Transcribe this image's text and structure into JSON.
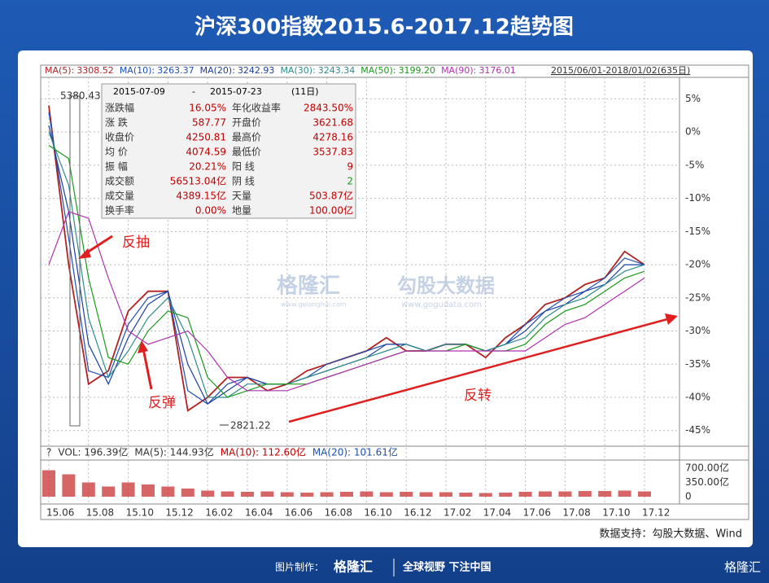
{
  "header": {
    "title": "沪深300指数2015.6-2017.12趋势图"
  },
  "toolbar": {
    "range": "2015/06/01-2018/01/02(635日)",
    "values": [
      "3308.52",
      "3263.37",
      "3242.93",
      "3243.34",
      "3199.20",
      "3176.01"
    ]
  },
  "info_box": {
    "start": "2015-07-09",
    "sep": "-",
    "end": "2015-07-23",
    "days": "(11日)",
    "rows": [
      [
        "涨跌幅",
        "16.05%",
        "年化收益率",
        "2843.50%"
      ],
      [
        "涨 跌",
        "587.77",
        "开盘价",
        "3621.68"
      ],
      [
        "收盘价",
        "4250.81",
        "最高价",
        "4278.16"
      ],
      [
        "均 价",
        "4074.59",
        "最低价",
        "3537.83"
      ],
      [
        "振 幅",
        "20.21%",
        "阳 线",
        "9"
      ],
      [
        "成交额",
        "56513.04亿",
        "阴 线",
        "2"
      ],
      [
        "成交量",
        "4389.15亿",
        "天量",
        "503.87亿"
      ],
      [
        "换手率",
        "0.00%",
        "地量",
        "100.00亿"
      ]
    ]
  },
  "annotations": {
    "high": "5380.43",
    "low": "2821.22",
    "a1": "反抽",
    "a2": "反弹",
    "a3": "反转"
  },
  "watermark": {
    "logo": "格隆汇",
    "site1": "www.gelonghui.com",
    "brand": "勾股大数据",
    "site2": "www.gogudata.com"
  },
  "chart_data": {
    "type": "line",
    "categories": [
      "15.06",
      null,
      "15.08",
      null,
      "15.10",
      null,
      "15.12",
      null,
      "16.02",
      null,
      "16.04",
      null,
      "16.06",
      null,
      "16.08",
      null,
      "16.10",
      null,
      "16.12",
      null,
      "17.02",
      null,
      "17.04",
      null,
      "17.06",
      null,
      "17.08",
      null,
      "17.10",
      null,
      "17.12"
    ],
    "ylim": [
      -47,
      8
    ],
    "yticks": [
      {
        "value": 5,
        "label": "5%"
      },
      {
        "value": 0,
        "label": "0%"
      },
      {
        "value": -5,
        "label": "-5%"
      },
      {
        "value": -10,
        "label": "-10%"
      },
      {
        "value": -15,
        "label": "-15%"
      },
      {
        "value": -20,
        "label": "-20%"
      },
      {
        "value": -25,
        "label": "-25%"
      },
      {
        "value": -30,
        "label": "-30%"
      },
      {
        "value": -35,
        "label": "-35%"
      },
      {
        "value": -40,
        "label": "-40%"
      },
      {
        "value": -45,
        "label": "-45%"
      }
    ],
    "grid": true,
    "series": [
      {
        "name": "MA(5):",
        "color": "#b22222",
        "values": [
          4,
          -20,
          -38,
          -36,
          -27,
          -24,
          -24,
          -42,
          -40,
          -37,
          -37,
          -39,
          -38,
          -36,
          -35,
          -34,
          -33,
          -31,
          -33,
          -33,
          -32,
          -32,
          -34,
          -31,
          -29,
          -26,
          -25,
          -23,
          -22,
          -18,
          -20
        ]
      },
      {
        "name": "MA(10):",
        "color": "#1f4fb0",
        "values": [
          3,
          -16,
          -36,
          -37,
          -29,
          -25,
          -24,
          -39,
          -41,
          -38,
          -37,
          -38,
          -38,
          -37,
          -35,
          -34,
          -33,
          -32,
          -32,
          -33,
          -32,
          -32,
          -33,
          -32,
          -29,
          -27,
          -25,
          -24,
          -22,
          -19,
          -20
        ]
      },
      {
        "name": "MA(20):",
        "color": "#1a3fa0",
        "values": [
          1,
          -12,
          -32,
          -38,
          -31,
          -26,
          -24,
          -35,
          -41,
          -39,
          -37,
          -38,
          -38,
          -37,
          -36,
          -35,
          -34,
          -32,
          -32,
          -33,
          -32,
          -32,
          -33,
          -32,
          -30,
          -27,
          -26,
          -24,
          -23,
          -20,
          -20
        ]
      },
      {
        "name": "MA(30):",
        "color": "#2e8b8b",
        "values": [
          0,
          -8,
          -28,
          -37,
          -33,
          -28,
          -25,
          -31,
          -40,
          -40,
          -38,
          -38,
          -38,
          -37,
          -36,
          -35,
          -34,
          -33,
          -32,
          -33,
          -32,
          -32,
          -33,
          -32,
          -31,
          -28,
          -26,
          -25,
          -23,
          -21,
          -20
        ]
      },
      {
        "name": "MA(50):",
        "color": "#1a9a1a",
        "values": [
          -2,
          -4,
          -22,
          -34,
          -35,
          -30,
          -27,
          -28,
          -37,
          -40,
          -39,
          -38,
          -38,
          -38,
          -37,
          -36,
          -35,
          -34,
          -33,
          -33,
          -33,
          -32,
          -33,
          -33,
          -32,
          -29,
          -27,
          -26,
          -24,
          -22,
          -21
        ]
      },
      {
        "name": "MA(90):",
        "color": "#b030b0",
        "values": [
          -20,
          -12,
          -13,
          -22,
          -30,
          -32,
          -31,
          -30,
          -33,
          -37,
          -39,
          -39,
          -39,
          -38,
          -37,
          -36,
          -35,
          -34,
          -33,
          -33,
          -33,
          -33,
          -33,
          -33,
          -33,
          -31,
          -29,
          -28,
          -26,
          -24,
          -22
        ]
      }
    ]
  },
  "volume": {
    "type": "bar",
    "color": "#c83232",
    "ylim": [
      0,
      700
    ],
    "yticks": [
      0,
      {
        "value": 350,
        "label": "350.00亿"
      },
      {
        "value": 700,
        "label": "700.00亿"
      }
    ],
    "values": [
      650,
      550,
      350,
      250,
      350,
      300,
      250,
      200,
      150,
      130,
      120,
      130,
      110,
      100,
      110,
      120,
      130,
      110,
      120,
      110,
      110,
      100,
      90,
      100,
      120,
      130,
      130,
      140,
      140,
      150,
      130
    ],
    "legend": [
      "?",
      "VOL: 196.39亿",
      "MA(5): 144.93亿",
      "MA(10): 112.60亿",
      "MA(20): 101.61亿"
    ]
  },
  "footer": {
    "source": "数据支持：勾股大数据、Wind",
    "made": "图片制作：",
    "logo": "格隆汇",
    "slogan": "全球视野 下注中国",
    "corner": "格隆汇"
  }
}
